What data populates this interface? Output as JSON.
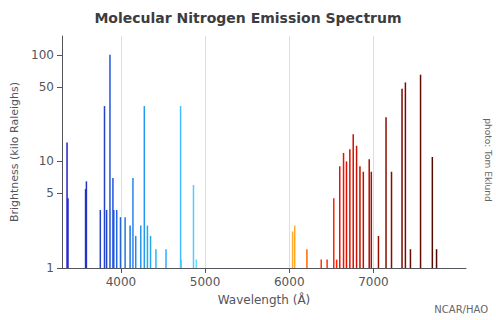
{
  "chart_data": {
    "type": "stem",
    "title": "Molecular Nitrogen Emission Spectrum",
    "xlabel": "Wavelength (Å)",
    "ylabel": "Brightness (kilo Raleighs)",
    "annotations": [
      "photo: Tom Eklund",
      "NCAR/HAO"
    ],
    "log": "y",
    "grid": "x",
    "xlim": [
      3300,
      8100
    ],
    "xticks": [
      4000,
      5000,
      6000,
      7000
    ],
    "ylim": [
      1,
      150
    ],
    "yticks": [
      1,
      5,
      10,
      50,
      100
    ],
    "x": [
      3360,
      3371,
      3580,
      3590,
      3755,
      3805,
      3830,
      3870,
      3905,
      3915,
      3950,
      3995,
      4050,
      4109,
      4143,
      4176,
      4236,
      4278,
      4315,
      4352,
      4416,
      4536,
      4709,
      4715,
      4862,
      4895,
      6040,
      6065,
      6210,
      6380,
      6450,
      6529,
      6563,
      6600,
      6645,
      6680,
      6720,
      6760,
      6800,
      6840,
      6880,
      6950,
      6975,
      7060,
      7150,
      7215,
      7340,
      7380,
      7440,
      7560,
      7700,
      7750
    ],
    "values": [
      15,
      4.5,
      5.5,
      6.5,
      3.5,
      33,
      3.5,
      100,
      7,
      3.5,
      3.5,
      3.0,
      3.0,
      2.5,
      7,
      2.0,
      2.5,
      33,
      2.5,
      2.0,
      1.5,
      1.5,
      33,
      1.2,
      6,
      1.2,
      2.2,
      2.5,
      1.5,
      1.2,
      1.2,
      4.5,
      1.2,
      9,
      12,
      10,
      13,
      18,
      14,
      9,
      8,
      10.5,
      8,
      2,
      26,
      8,
      48,
      55,
      1.5,
      65,
      11,
      1.5
    ],
    "colors": [
      "#2222cc",
      "#2222cc",
      "#2233cc",
      "#2233cc",
      "#2244cc",
      "#2244cc",
      "#2244cc",
      "#2255dd",
      "#2255dd",
      "#2255dd",
      "#2266dd",
      "#2266dd",
      "#2277dd",
      "#2277dd",
      "#2288ee",
      "#2288ee",
      "#2299ee",
      "#2299ee",
      "#22aaee",
      "#22aaee",
      "#22bbee",
      "#33aaff",
      "#44bbff",
      "#44ccff",
      "#55ccff",
      "#66ddff",
      "#ffaa33",
      "#ffaa22",
      "#ff6600",
      "#ff3300",
      "#ff3300",
      "#ff2200",
      "#ff2200",
      "#ee1100",
      "#ee1100",
      "#dd1100",
      "#dd1100",
      "#cc1100",
      "#cc1100",
      "#bb1100",
      "#bb1100",
      "#aa0f00",
      "#aa0f00",
      "#990e00",
      "#880d00",
      "#880d00",
      "#770c00",
      "#770c00",
      "#660b00",
      "#660b00",
      "#550a00",
      "#550a00"
    ]
  }
}
